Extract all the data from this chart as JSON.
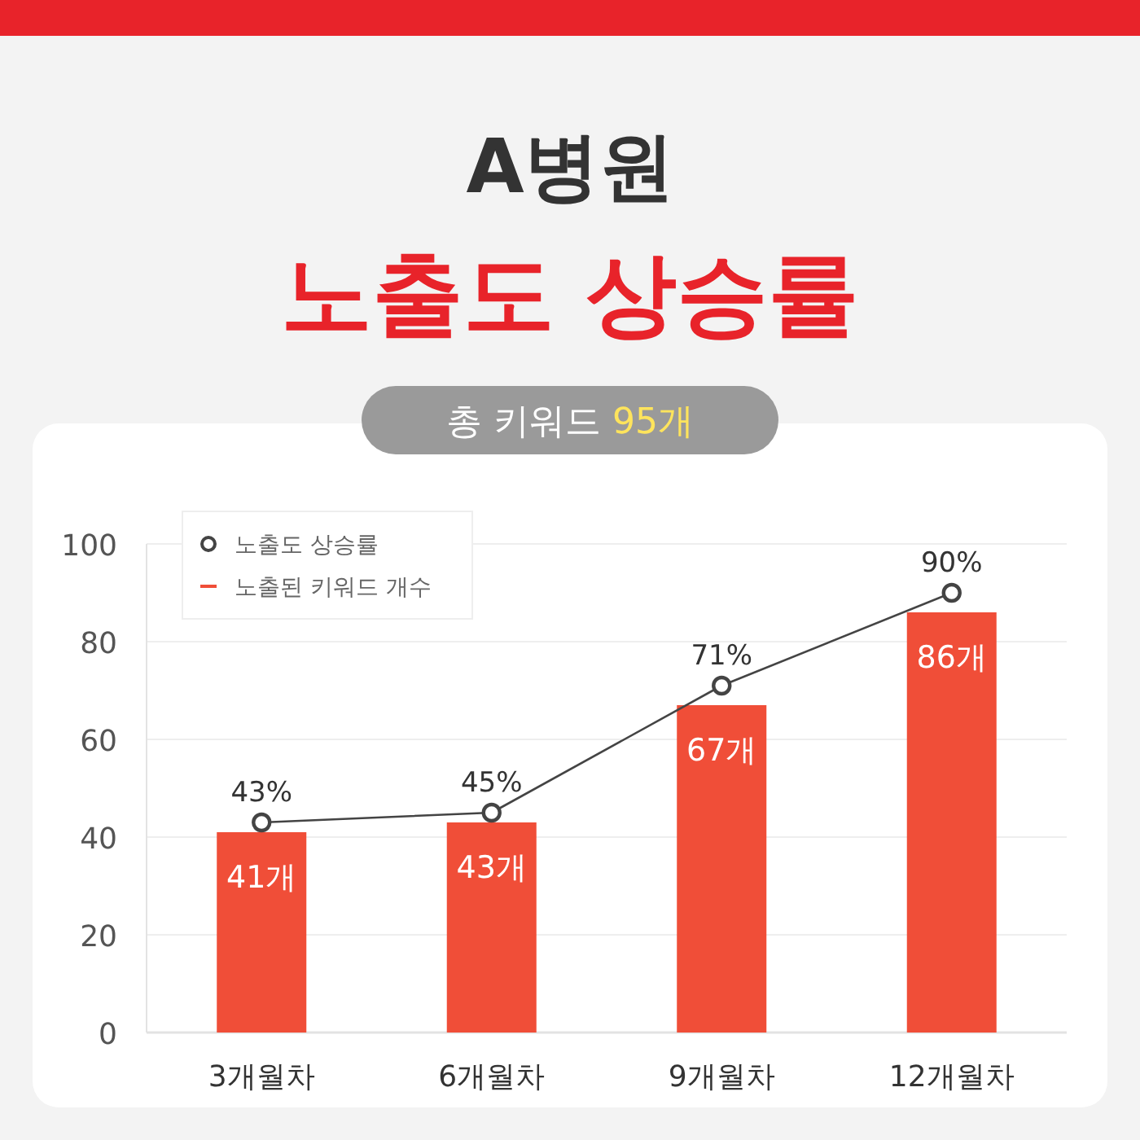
{
  "chart_data": {
    "type": "bar",
    "title": "A병원",
    "subtitle": "노출도 상승률",
    "annotations": [
      "총 키워드 95개"
    ],
    "categories": [
      "3개월차",
      "6개월차",
      "9개월차",
      "12개월차"
    ],
    "series": [
      {
        "name": "노출도 상승률",
        "type": "line",
        "color": "#444444",
        "marker": "circle",
        "values": [
          43,
          45,
          71,
          90
        ],
        "value_labels": [
          "43%",
          "45%",
          "71%",
          "90%"
        ]
      },
      {
        "name": "노출된 키워드 개수",
        "color": "#f04e38",
        "values": [
          41,
          43,
          67,
          86
        ],
        "value_labels": [
          "41개",
          "43개",
          "67개",
          "86개"
        ]
      }
    ],
    "ylim": [
      0,
      100
    ],
    "yticks": [
      0,
      20,
      40,
      60,
      80,
      100
    ],
    "grid": "y",
    "legend": "top left"
  }
}
